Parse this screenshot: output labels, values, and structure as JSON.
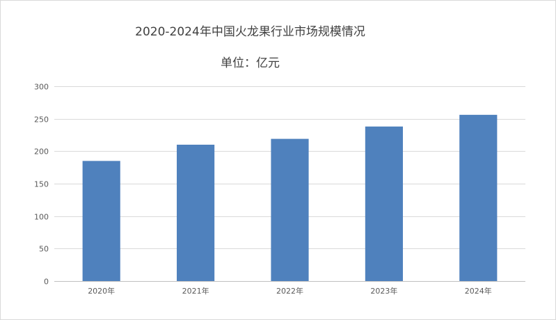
{
  "chart_data": {
    "type": "bar",
    "title": "2020-2024年中国火龙果行业市场规模情况",
    "subtitle": "单位：亿元",
    "categories": [
      "2020年",
      "2021年",
      "2022年",
      "2023年",
      "2024年"
    ],
    "series": [
      {
        "values": [
          185,
          210,
          219,
          238,
          256
        ]
      }
    ],
    "ylim": [
      0,
      300
    ],
    "yticks": [
      0,
      50,
      100,
      150,
      200,
      250,
      300
    ],
    "ytick_labels": [
      "0",
      "50",
      "100",
      "150",
      "200",
      "250",
      "300"
    ],
    "xlabel": "",
    "ylabel": "",
    "grid": true,
    "legend": "none",
    "colors": {
      "bar": "#4f81bd",
      "grid": "#d9d9d9",
      "axis": "#bfbfbf"
    }
  }
}
